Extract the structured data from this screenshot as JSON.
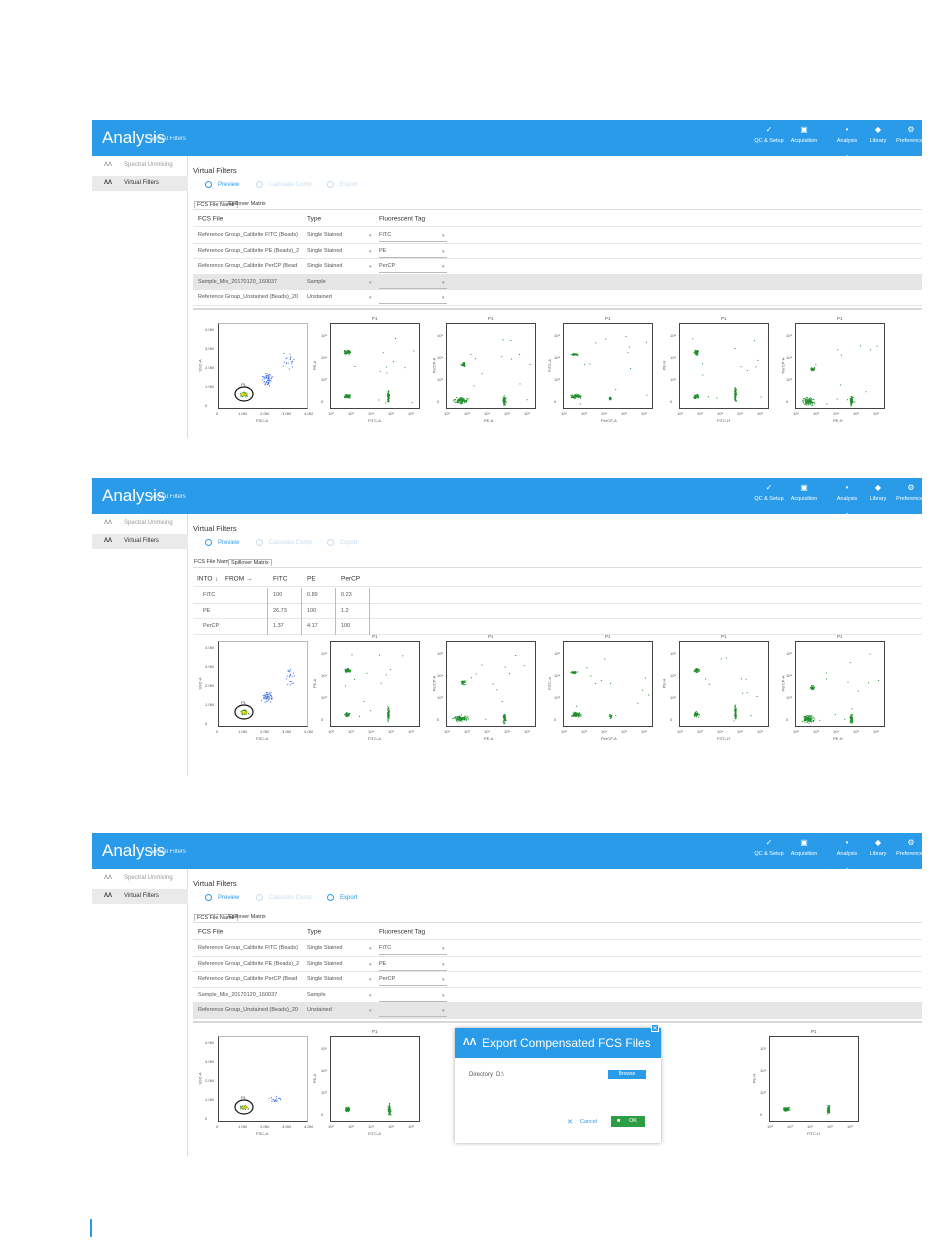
{
  "app_title": "Analysis",
  "app_subtitle": "Virtual Filters",
  "nav": [
    {
      "label": "QC & Setup",
      "icon": "qc-setup-icon"
    },
    {
      "label": "Acquisition",
      "icon": "acquisition-icon"
    },
    {
      "label": "Analysis",
      "icon": "analysis-icon"
    },
    {
      "label": "Library",
      "icon": "library-icon"
    },
    {
      "label": "Preferences",
      "icon": "gear-icon"
    }
  ],
  "sidebar": [
    {
      "label": "Spectral Unmixing"
    },
    {
      "label": "Virtual Filters"
    }
  ],
  "section_title": "Virtual Filters",
  "toolbar": {
    "preview": "Preview",
    "calculate": "Calculate Comp.",
    "export": "Export"
  },
  "tabs": {
    "fcs_file_name": "FCS File Name",
    "spillover_matrix": "Spillover Matrix"
  },
  "file_table": {
    "headers": [
      "FCS File",
      "Type",
      "Fluorescent Tag"
    ],
    "rows": [
      {
        "file": "Reference Group_Calibrite FITC (Beads)",
        "type": "Single Stained",
        "tag": "FITC"
      },
      {
        "file": "Reference Group_Calibrite PE (Beads)_2",
        "type": "Single Stained",
        "tag": "PE"
      },
      {
        "file": "Reference Group_Calibrite PerCP (Bead",
        "type": "Single Stained",
        "tag": "PerCP"
      },
      {
        "file": "Sample_Mix_20170120_160037",
        "type": "Sample",
        "tag": ""
      },
      {
        "file": "Reference Group_Unstained (Beads)_20",
        "type": "Unstained",
        "tag": ""
      }
    ]
  },
  "spill_matrix": {
    "corner_to": "INTO",
    "corner_from": "FROM",
    "columns": [
      "FITC",
      "PE",
      "PerCP"
    ],
    "rows": [
      {
        "name": "FITC",
        "values": [
          "100",
          "0.89",
          "0.23"
        ]
      },
      {
        "name": "PE",
        "values": [
          "26.73",
          "100",
          "1.2"
        ]
      },
      {
        "name": "PerCP",
        "values": [
          "1.37",
          "4.17",
          "100"
        ]
      }
    ]
  },
  "plots": {
    "ssc": {
      "title": "P1",
      "xlabel": "FSC-A",
      "ylabel": "SSC-A",
      "xticks": [
        "0",
        "1.0M",
        "2.0M",
        "3.0M",
        "4.0M"
      ],
      "yticks": [
        "4.0M",
        "3.0M",
        "2.0M",
        "1.0M",
        "0"
      ]
    },
    "titles": [
      "P1",
      "P1",
      "P1",
      "P1",
      "P1"
    ],
    "xlabels": [
      "FITC-A",
      "PE-A",
      "PerCP-A",
      "FITC-H",
      "PE-H"
    ],
    "ylabels": [
      "PE-A",
      "PerCP-A",
      "FITC-A",
      "PE-H",
      "PerCP-H"
    ]
  },
  "dialog": {
    "title": "Export Compensated FCS Files",
    "directory_label": "Directory",
    "directory_value": "D:\\",
    "browse": "Browse",
    "cancel": "Cancel",
    "ok": "OK"
  },
  "colors": {
    "accent": "#2a9be8",
    "points_green": "#1f8f2b",
    "points_blue": "#3d6fe0",
    "ok_green": "#2e9e44"
  }
}
